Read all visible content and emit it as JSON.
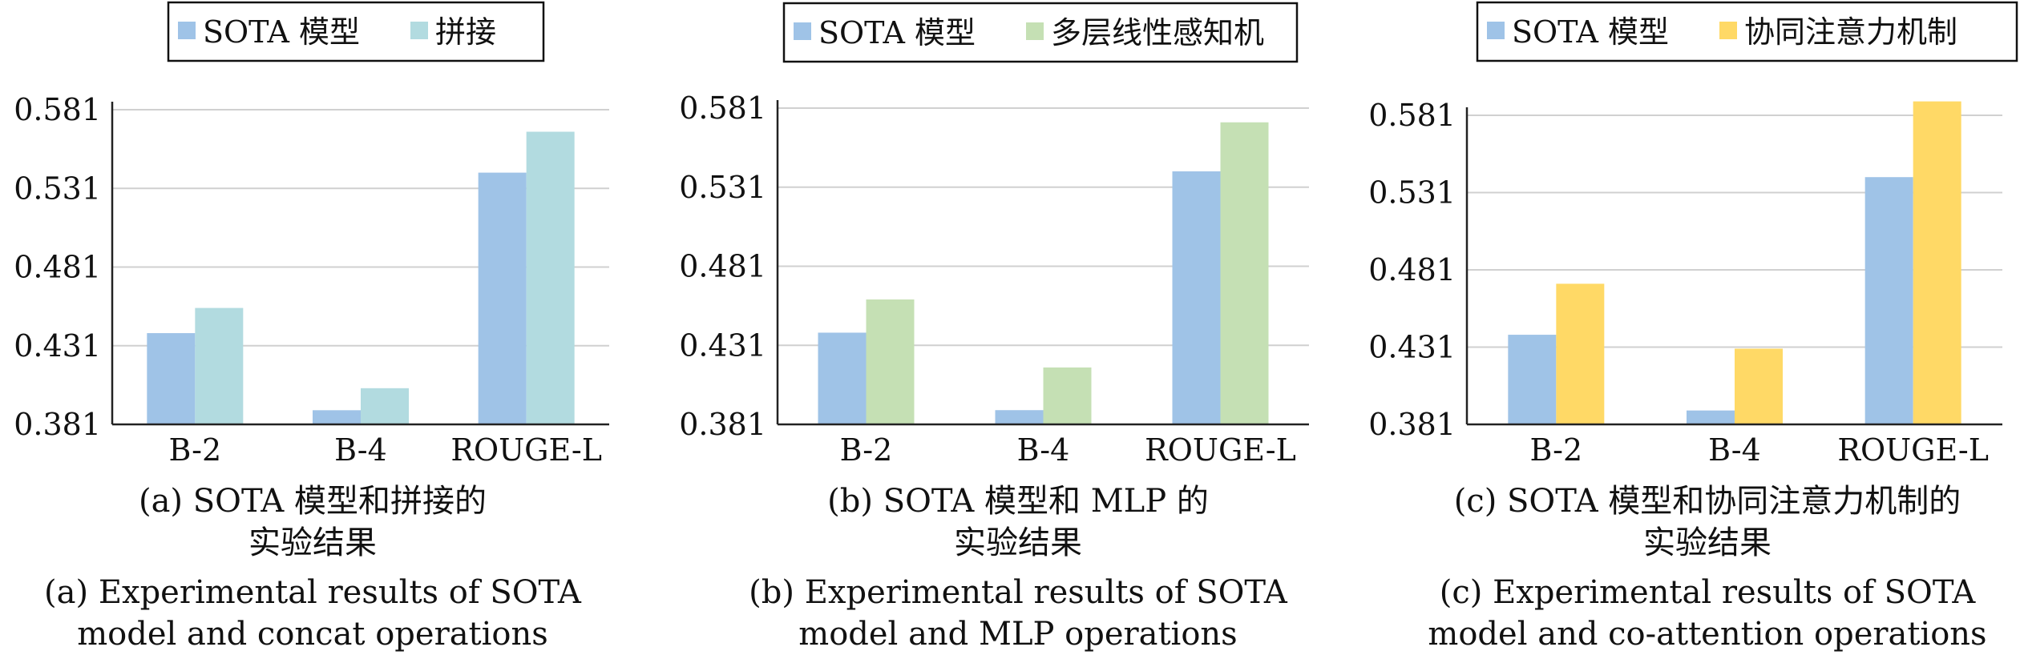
{
  "colors": {
    "sota": "#9fc3e7",
    "concat": "#b2dbe0",
    "mlp": "#c5e0b4",
    "coattention": "#ffd966",
    "axis": "#222222",
    "grid": "#d0d0d0"
  },
  "chart_data": [
    {
      "type": "bar",
      "categories": [
        "B-2",
        "B-4",
        "ROUGE-L"
      ],
      "ylim": [
        0.381,
        0.581
      ],
      "yticks": [
        "0.381",
        "0.431",
        "0.481",
        "0.531",
        "0.581"
      ],
      "grid": true,
      "legend_position": "top",
      "series": [
        {
          "name": "SOTA 模型",
          "color": "#9fc3e7",
          "values": [
            0.439,
            0.39,
            0.541
          ]
        },
        {
          "name": "拼接",
          "color": "#b2dbe0",
          "values": [
            0.455,
            0.404,
            0.567
          ]
        }
      ],
      "caption_cn": [
        "(a) SOTA 模型和拼接的",
        "实验结果"
      ],
      "caption_en": [
        "(a) Experimental results of SOTA",
        "model and concat operations"
      ]
    },
    {
      "type": "bar",
      "categories": [
        "B-2",
        "B-4",
        "ROUGE-L"
      ],
      "ylim": [
        0.381,
        0.581
      ],
      "yticks": [
        "0.381",
        "0.431",
        "0.481",
        "0.531",
        "0.581"
      ],
      "grid": true,
      "legend_position": "top",
      "series": [
        {
          "name": "SOTA 模型",
          "color": "#9fc3e7",
          "values": [
            0.439,
            0.39,
            0.541
          ]
        },
        {
          "name": "多层线性感知机",
          "color": "#c5e0b4",
          "values": [
            0.46,
            0.417,
            0.572
          ]
        }
      ],
      "caption_cn": [
        "(b) SOTA 模型和 MLP 的",
        "实验结果"
      ],
      "caption_en": [
        "(b) Experimental results of SOTA",
        "model and MLP operations"
      ]
    },
    {
      "type": "bar",
      "categories": [
        "B-2",
        "B-4",
        "ROUGE-L"
      ],
      "ylim": [
        0.381,
        0.581
      ],
      "yticks": [
        "0.381",
        "0.431",
        "0.481",
        "0.531",
        "0.581"
      ],
      "grid": true,
      "legend_position": "top",
      "series": [
        {
          "name": "SOTA 模型",
          "color": "#9fc3e7",
          "values": [
            0.439,
            0.39,
            0.541
          ]
        },
        {
          "name": "协同注意力机制",
          "color": "#ffd966",
          "values": [
            0.472,
            0.43,
            0.59
          ]
        }
      ],
      "caption_cn": [
        "(c) SOTA 模型和协同注意力机制的",
        "实验结果"
      ],
      "caption_en": [
        "(c) Experimental results of SOTA",
        "model and co-attention operations"
      ]
    }
  ]
}
